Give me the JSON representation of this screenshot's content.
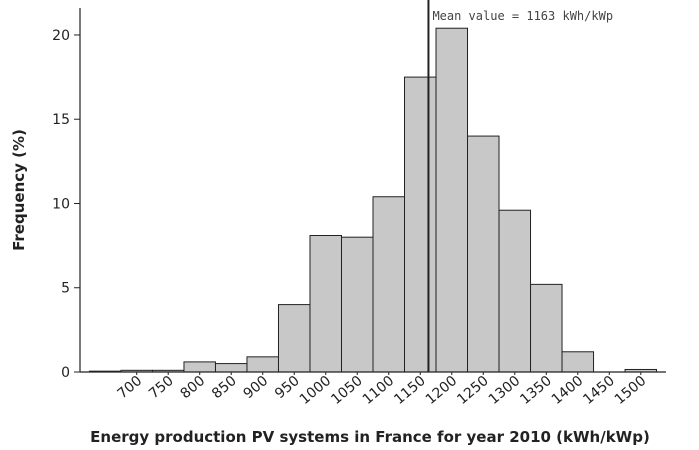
{
  "chart_data": {
    "type": "histogram",
    "xlabel": "Energy production PV systems in France for year 2010 (kWh/kWp)",
    "ylabel": "Frequency (%)",
    "bins": [
      625,
      675,
      725,
      775,
      825,
      875,
      925,
      975,
      1025,
      1075,
      1125,
      1175,
      1225,
      1275,
      1325,
      1375,
      1425,
      1475,
      1525
    ],
    "values": [
      0.05,
      0.1,
      0.1,
      0.6,
      0.5,
      0.9,
      4,
      8.1,
      8.0,
      10.4,
      17.5,
      20.4,
      14,
      9.6,
      5.2,
      1.2,
      0,
      0.15
    ],
    "color": "#c8c8c8",
    "xlim": [
      610,
      1540
    ],
    "ylim": [
      0,
      21.6
    ],
    "xticks": [
      700,
      750,
      800,
      850,
      900,
      950,
      1000,
      1050,
      1100,
      1150,
      1200,
      1250,
      1300,
      1350,
      1400,
      1450,
      1500
    ],
    "yticks": [
      0,
      5,
      10,
      15,
      20
    ],
    "annotation": {
      "text": "Mean value = 1163 kWh/kWp",
      "x": 1163
    }
  }
}
